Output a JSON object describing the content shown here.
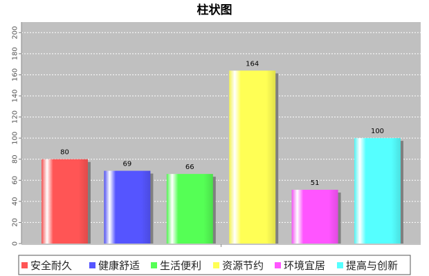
{
  "chart_data": {
    "type": "bar",
    "title": "柱状图",
    "xlabel": "",
    "ylabel": "",
    "categories": [
      "安全耐久",
      "健康舒适",
      "生活便利",
      "资源节约",
      "环境宜居",
      "提高与创新"
    ],
    "values": [
      80,
      69,
      66,
      164,
      51,
      100
    ],
    "data_labels": [
      "80",
      "69",
      "66",
      "164",
      "51",
      "100"
    ],
    "ylim": [
      0,
      210
    ],
    "yticks": [
      0,
      20,
      40,
      60,
      80,
      100,
      120,
      140,
      160,
      180,
      200
    ],
    "ytick_labels": [
      "0",
      "20",
      "40",
      "60",
      "80",
      "100",
      "120",
      "140",
      "160",
      "180",
      "200"
    ],
    "colors": [
      "#ff5555",
      "#5555ff",
      "#55ff55",
      "#ffff55",
      "#ff55ff",
      "#55ffff"
    ],
    "plot_background": "#c0c0c0",
    "grid": true,
    "legend_position": "bottom",
    "legend": [
      "安全耐久",
      "健康舒适",
      "生活便利",
      "资源节约",
      "环境宜居",
      "提高与创新"
    ]
  }
}
